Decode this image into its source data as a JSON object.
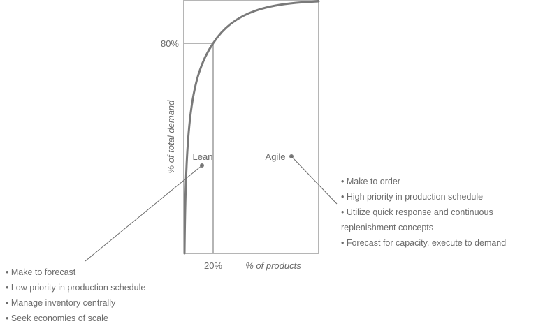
{
  "diagram": {
    "y_axis_label": "% of total demand",
    "x_axis_label": "% of products",
    "tick_80": "80%",
    "tick_20": "20%",
    "lean_label": "Lean",
    "agile_label": "Agile"
  },
  "lean": {
    "items": [
      "• Make to forecast",
      "• Low priority in production schedule",
      "• Manage inventory centrally",
      "• Seek economies of scale"
    ]
  },
  "agile": {
    "items": [
      "• Make to order",
      "• High priority in production schedule",
      "• Utilize quick response and continuous",
      "replenishment concepts",
      "• Forecast for capacity, execute to demand"
    ]
  },
  "colors": {
    "curve": "#7a7a7a",
    "lines": "#6b6b6b",
    "text": "#6b6b6b",
    "dot": "#7a7a7a"
  }
}
